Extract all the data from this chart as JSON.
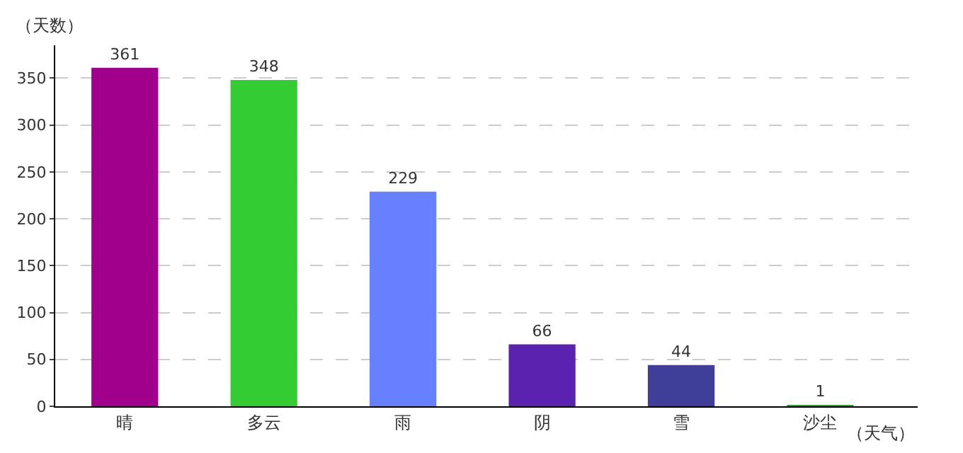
{
  "chart_data": {
    "type": "bar",
    "xlabel": "（天气）",
    "ylabel": "（天数）",
    "categories": [
      "晴",
      "多云",
      "雨",
      "阴",
      "雪",
      "沙尘"
    ],
    "values": [
      361,
      348,
      229,
      66,
      44,
      1
    ],
    "colors": [
      "#a0008c",
      "#33cc33",
      "#6680ff",
      "#5b22b0",
      "#3f3f99",
      "#2e9e2e"
    ],
    "ylim": [
      0,
      385
    ],
    "yticks": [
      0,
      50,
      100,
      150,
      200,
      250,
      300,
      350
    ],
    "grid": "y",
    "data_labels": true,
    "legend": false
  }
}
